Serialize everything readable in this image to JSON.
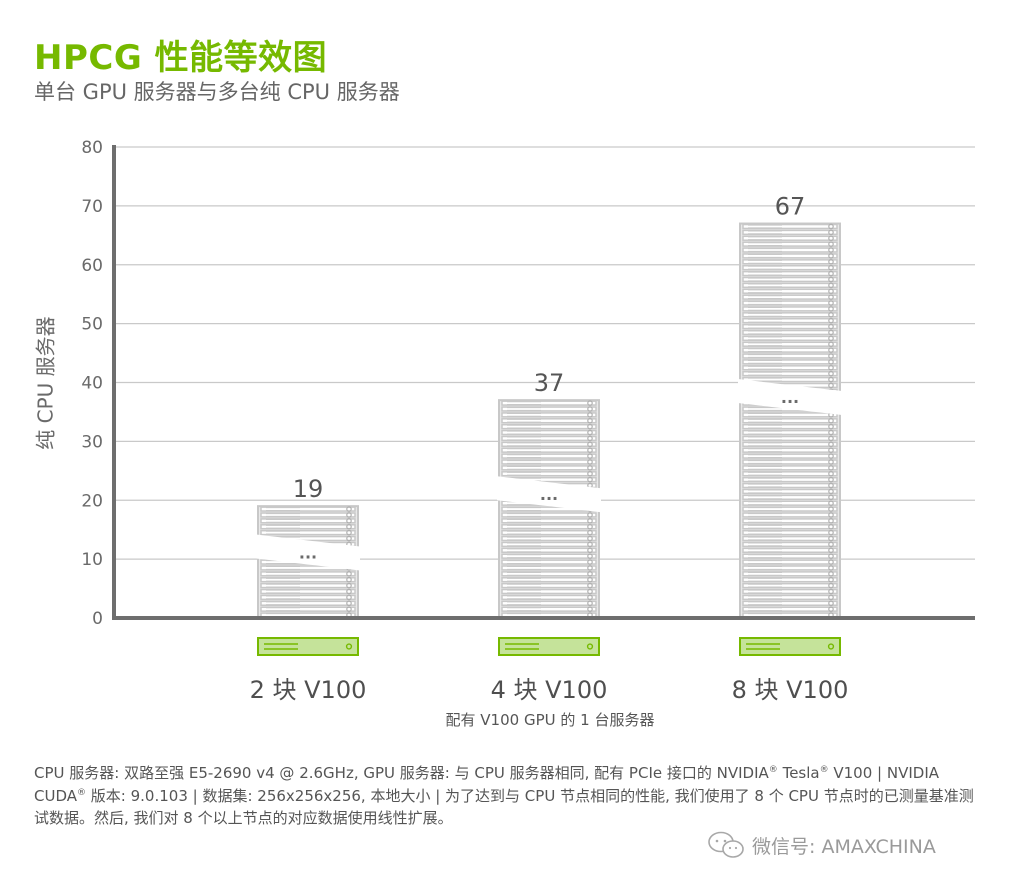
{
  "title": "HPCG 性能等效图",
  "subtitle": "单台 GPU 服务器与多台纯 CPU 服务器",
  "colors": {
    "accent": "#76b900",
    "gpu_fill": "#c5e39a",
    "server": "#c8c8c8",
    "axis": "#6e6e6e"
  },
  "chart_data": {
    "type": "bar",
    "title": "HPCG 性能等效图",
    "subtitle": "单台 GPU 服务器与多台纯 CPU 服务器",
    "categories": [
      "2 块 V100",
      "4 块 V100",
      "8 块 V100"
    ],
    "values": [
      19,
      37,
      67
    ],
    "data_labels": [
      "19",
      "37",
      "67"
    ],
    "ylabel": "纯 CPU 服务器",
    "xlabel": "配有 V100 GPU 的 1 台服务器",
    "ylim": [
      0,
      80
    ],
    "yticks": [
      "0",
      "10",
      "20",
      "30",
      "40",
      "50",
      "60",
      "70",
      "80"
    ],
    "grid": true,
    "break_marker": "..."
  },
  "footnote": {
    "parts": [
      "CPU 服务器: 双路至强 E5-2690 v4 @ 2.6GHz, GPU 服务器: 与 CPU 服务器相同, 配有 PCIe 接口的 NVIDIA",
      "Tesla",
      " V100 | NVIDIA CUDA",
      " 版本: 9.0.103 | 数据集: 256x256x256, 本地大小 | 为了达到与 CPU 节点相同的性能, 我们使用了 8 个 CPU 节点时的已测量基准测试数据。然后, 我们对 8 个以上节点的对应数据使用线性扩展。"
    ],
    "reg_mark": "®"
  },
  "watermark": {
    "text": "微信号: AMAXCHINA",
    "icon": "wechat-icon"
  }
}
